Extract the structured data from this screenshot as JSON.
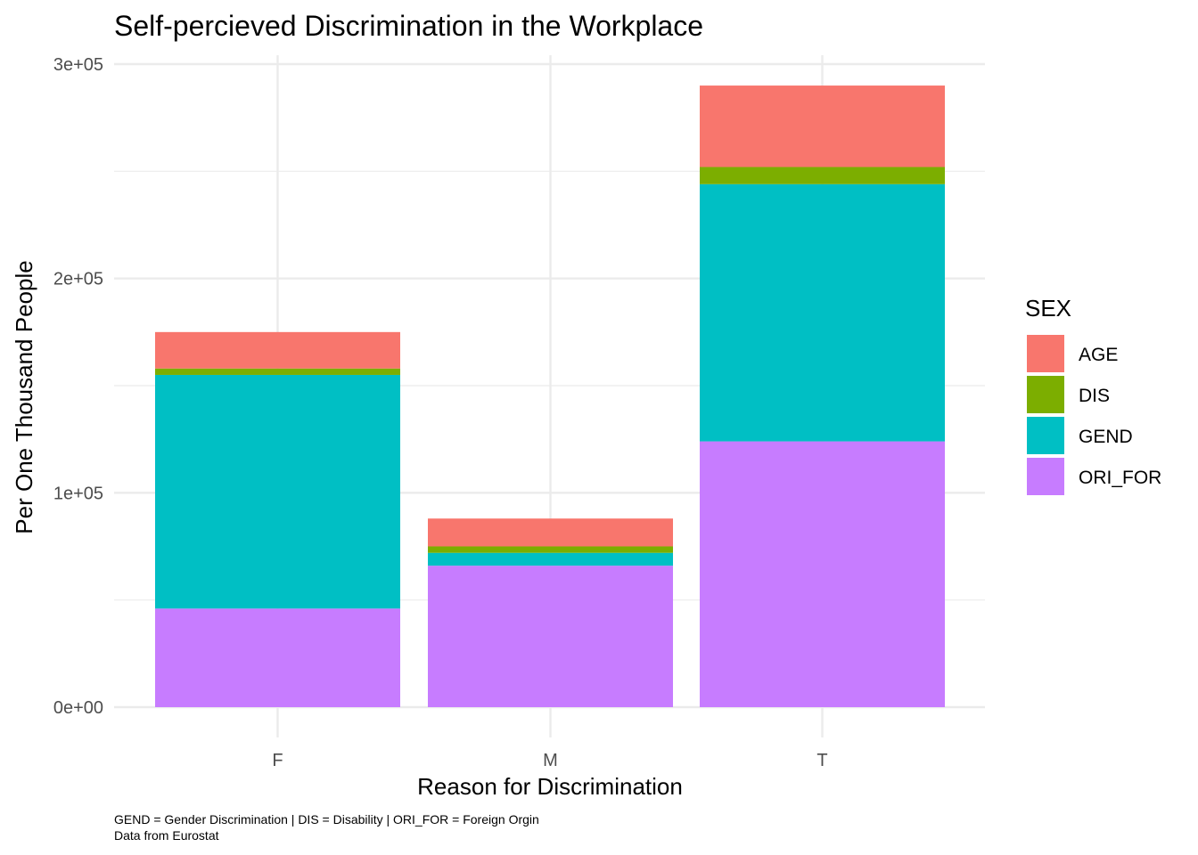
{
  "chart_data": {
    "type": "bar",
    "stacked": true,
    "title": "Self-percieved Discrimination in the Workplace",
    "xlabel": "Reason for Discrimination",
    "ylabel": "Per One Thousand People",
    "categories": [
      "F",
      "M",
      "T"
    ],
    "ylim": [
      0,
      300000
    ],
    "yticks": [
      {
        "value": 0,
        "label": "0e+00"
      },
      {
        "value": 100000,
        "label": "1e+05"
      },
      {
        "value": 200000,
        "label": "2e+05"
      },
      {
        "value": 300000,
        "label": "3e+05"
      }
    ],
    "grid": true,
    "legend": {
      "title": "SEX",
      "position": "right"
    },
    "series": [
      {
        "name": "AGE",
        "color": "#F8766D",
        "values": [
          17000,
          13000,
          38000
        ]
      },
      {
        "name": "DIS",
        "color": "#7CAE00",
        "values": [
          3000,
          3000,
          8000
        ]
      },
      {
        "name": "GEND",
        "color": "#00BFC4",
        "values": [
          109000,
          6000,
          120000
        ]
      },
      {
        "name": "ORI_FOR",
        "color": "#C77CFF",
        "values": [
          46000,
          66000,
          124000
        ]
      }
    ],
    "stack_order_bottom_to_top": [
      "ORI_FOR",
      "GEND",
      "DIS",
      "AGE"
    ],
    "caption_lines": [
      "GEND = Gender Discrimination | DIS = Disability | ORI_FOR = Foreign Orgin",
      "Data from Eurostat"
    ]
  }
}
